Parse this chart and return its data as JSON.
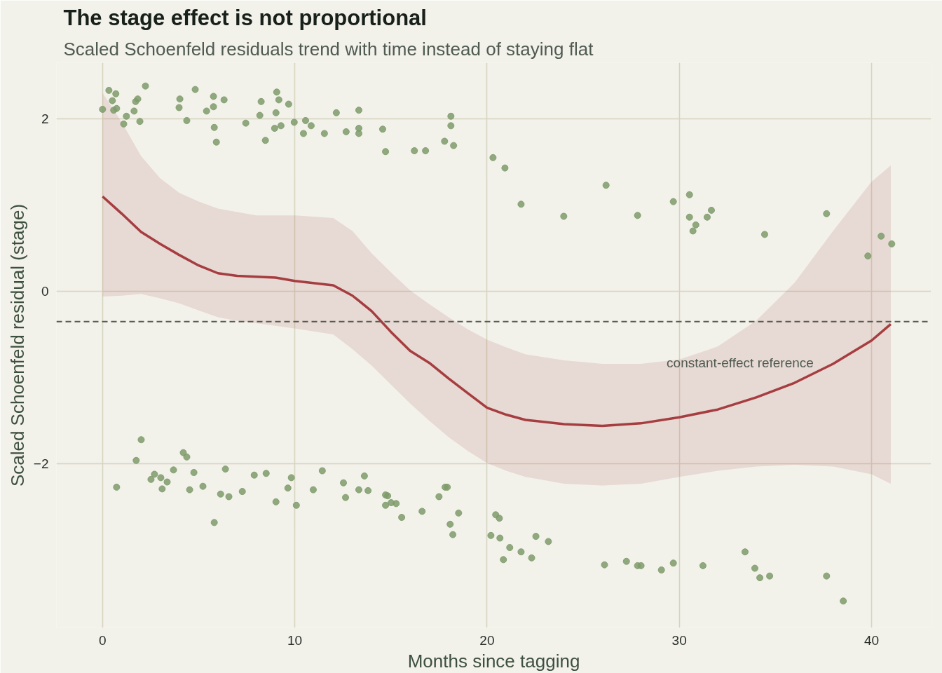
{
  "chart_data": {
    "type": "scatter",
    "title": "The stage effect is not proportional",
    "subtitle": "Scaled Schoenfeld residuals trend with time instead of staying flat",
    "xlabel": "Months since tagging",
    "ylabel": "Scaled Schoenfeld residual (stage)",
    "xlim": [
      -2.4,
      43.1
    ],
    "ylim": [
      -3.9,
      2.65
    ],
    "xticks": [
      0,
      10,
      20,
      30,
      40
    ],
    "yticks": [
      -2,
      0,
      2
    ],
    "grid": true,
    "marker": "circle",
    "x": [
      0,
      0.33,
      0.51,
      0.69,
      0.58,
      0.73,
      1.1,
      1.24,
      1.64,
      1.72,
      1.83,
      1.94,
      2.23,
      3.98,
      4.02,
      4.38,
      4.82,
      5.41,
      5.77,
      5.77,
      5.81,
      5.92,
      6.32,
      7.45,
      8.18,
      8.25,
      8.47,
      8.95,
      9.02,
      9.06,
      9.17,
      9.28,
      9.68,
      9.97,
      10.45,
      10.56,
      10.85,
      11.54,
      12.16,
      12.67,
      13.33,
      13.33,
      13.33,
      14.57,
      14.72,
      16.22,
      16.8,
      17.79,
      18.12,
      18.12,
      18.26,
      20.31,
      20.93,
      21.77,
      23.99,
      26.19,
      27.83,
      29.69,
      30.53,
      30.53,
      30.71,
      30.86,
      31.45,
      31.67,
      34.44,
      37.66,
      39.81,
      40.5,
      41.05,
      0.73,
      1.75,
      2.01,
      2.52,
      2.7,
      3.03,
      3.1,
      3.36,
      3.69,
      4.2,
      4.38,
      4.53,
      4.75,
      5.22,
      5.81,
      6.14,
      6.39,
      6.57,
      7.27,
      7.89,
      8.51,
      9.02,
      9.64,
      9.82,
      10.08,
      10.96,
      11.43,
      12.53,
      12.64,
      13.33,
      13.62,
      13.81,
      14.72,
      14.83,
      14.72,
      15.01,
      15.27,
      15.56,
      16.62,
      17.5,
      17.82,
      17.93,
      18.08,
      18.22,
      18.52,
      20.45,
      20.64,
      20.2,
      20.67,
      20.85,
      21.18,
      21.77,
      22.32,
      22.54,
      23.19,
      26.11,
      27.25,
      27.83,
      28.01,
      29.07,
      29.69,
      31.23,
      33.42,
      33.93,
      34.19,
      34.7,
      37.66,
      38.53
    ],
    "series": [
      {
        "color": "#7f9b6b",
        "values": [
          2.11,
          2.33,
          2.21,
          2.29,
          2.1,
          2.12,
          1.94,
          2.03,
          2.09,
          2.2,
          2.23,
          1.97,
          2.38,
          2.13,
          2.23,
          1.98,
          2.34,
          2.09,
          2.26,
          2.14,
          1.9,
          1.73,
          2.22,
          1.95,
          2.04,
          2.2,
          1.75,
          1.89,
          2.07,
          2.31,
          2.22,
          1.92,
          2.17,
          1.96,
          1.83,
          1.98,
          1.92,
          1.83,
          2.07,
          1.85,
          2.1,
          1.89,
          1.83,
          1.88,
          1.62,
          1.63,
          1.63,
          1.74,
          2.03,
          1.92,
          1.69,
          1.55,
          1.43,
          1.01,
          0.87,
          1.23,
          0.88,
          1.04,
          1.12,
          0.86,
          0.7,
          0.77,
          0.86,
          0.94,
          0.66,
          0.9,
          0.41,
          0.64,
          0.55,
          -2.27,
          -1.96,
          -1.72,
          -2.18,
          -2.12,
          -2.16,
          -2.29,
          -2.21,
          -2.07,
          -1.87,
          -1.92,
          -2.3,
          -2.1,
          -2.26,
          -2.68,
          -2.35,
          -2.06,
          -2.38,
          -2.32,
          -2.13,
          -2.11,
          -2.44,
          -2.28,
          -2.16,
          -2.48,
          -2.3,
          -2.08,
          -2.22,
          -2.39,
          -2.3,
          -2.14,
          -2.31,
          -2.36,
          -2.37,
          -2.48,
          -2.45,
          -2.46,
          -2.62,
          -2.55,
          -2.38,
          -2.27,
          -2.27,
          -2.7,
          -2.82,
          -2.57,
          -2.59,
          -2.63,
          -2.83,
          -2.86,
          -3.11,
          -2.97,
          -3.02,
          -3.09,
          -2.84,
          -2.9,
          -3.17,
          -3.13,
          -3.18,
          -3.18,
          -3.23,
          -3.15,
          -3.18,
          -3.02,
          -3.21,
          -3.32,
          -3.3,
          -3.3,
          -3.59
        ]
      },
      {
        "type": "line",
        "color": "#a63d40",
        "marker": "none",
        "line_style": "solid",
        "x": [
          0,
          1,
          2,
          3,
          4,
          5,
          6,
          7,
          8,
          9,
          10,
          12,
          13,
          14,
          15,
          16,
          17,
          18,
          19,
          20,
          21,
          22,
          24,
          26,
          28,
          30,
          32,
          34,
          36,
          38,
          40,
          41
        ],
        "values": [
          1.1,
          0.9,
          0.69,
          0.55,
          0.42,
          0.3,
          0.21,
          0.18,
          0.17,
          0.16,
          0.12,
          0.07,
          -0.05,
          -0.23,
          -0.47,
          -0.69,
          -0.83,
          -1.01,
          -1.18,
          -1.35,
          -1.43,
          -1.49,
          -1.54,
          -1.56,
          -1.53,
          -1.46,
          -1.37,
          -1.23,
          -1.06,
          -0.84,
          -0.57,
          -0.38
        ],
        "upper": [
          2.3,
          1.96,
          1.57,
          1.31,
          1.14,
          1.04,
          0.96,
          0.92,
          0.88,
          0.88,
          0.88,
          0.85,
          0.7,
          0.44,
          0.22,
          0.01,
          -0.15,
          -0.3,
          -0.44,
          -0.56,
          -0.65,
          -0.73,
          -0.8,
          -0.84,
          -0.84,
          -0.79,
          -0.64,
          -0.34,
          0.1,
          0.7,
          1.27,
          1.46
        ],
        "lower": [
          -0.06,
          -0.05,
          -0.03,
          -0.08,
          -0.14,
          -0.22,
          -0.3,
          -0.34,
          -0.37,
          -0.4,
          -0.43,
          -0.5,
          -0.67,
          -0.86,
          -1.08,
          -1.3,
          -1.5,
          -1.69,
          -1.85,
          -1.99,
          -2.08,
          -2.15,
          -2.23,
          -2.25,
          -2.23,
          -2.15,
          -2.08,
          -2.03,
          -2.01,
          -2.03,
          -2.12,
          -2.23
        ]
      }
    ],
    "ref_lines": [
      {
        "axis": "y",
        "value": -0.35,
        "label": "constant-effect reference",
        "color": "#555a52",
        "line_style": "dashed"
      }
    ]
  }
}
